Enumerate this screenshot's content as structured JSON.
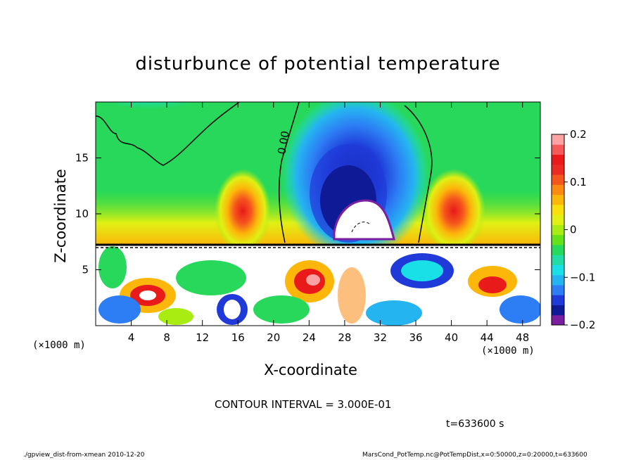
{
  "chart_data": {
    "type": "heatmap",
    "title": "disturbunce of potential temperature",
    "xlabel": "X-coordinate",
    "ylabel": "Z-coordinate",
    "x_unit_label": "(×1000 m)",
    "xlim": [
      0,
      50
    ],
    "ylim": [
      0,
      20
    ],
    "x_ticks": [
      4,
      8,
      12,
      16,
      20,
      24,
      28,
      32,
      36,
      40,
      44,
      48
    ],
    "y_ticks": [
      5,
      10,
      15
    ],
    "colorbar": {
      "range": [
        -0.2,
        0.2
      ],
      "ticks": [
        "0.2",
        "0.1",
        "0",
        "−0.1",
        "−0.2"
      ],
      "colors": [
        "#7a1fa2",
        "#0f1a96",
        "#1f3ad8",
        "#2d7ef5",
        "#24b4f0",
        "#19e0e6",
        "#21dca7",
        "#27d85a",
        "#63e21b",
        "#a8ec12",
        "#e0f014",
        "#f8e10b",
        "#fcb70a",
        "#fb8a12",
        "#f5561d",
        "#eb2a22",
        "#e81a1a",
        "#f45a5a",
        "#fba3a3"
      ]
    },
    "contour_label": "0.00",
    "contour_interval_text": "CONTOUR INTERVAL = 3.000E-01",
    "time_text": "t=633600 s",
    "regions": [
      {
        "name": "upper-left-background",
        "value": 0.0
      },
      {
        "name": "cold-core",
        "x": 28,
        "z": 12,
        "value": -0.2
      },
      {
        "name": "warm-left",
        "x": 16.5,
        "z": 9,
        "value": 0.15
      },
      {
        "name": "warm-right",
        "x": 40.5,
        "z": 9,
        "value": 0.15
      },
      {
        "name": "cold-top-left",
        "x": 6,
        "z": 19.5,
        "value": -0.08
      }
    ]
  },
  "footer": {
    "left": "./gpview_dist-from-xmean  2010-12-20",
    "right": "MarsCond_PotTemp.nc@PotTempDist,x=0:50000,z=0:20000,t=633600"
  }
}
